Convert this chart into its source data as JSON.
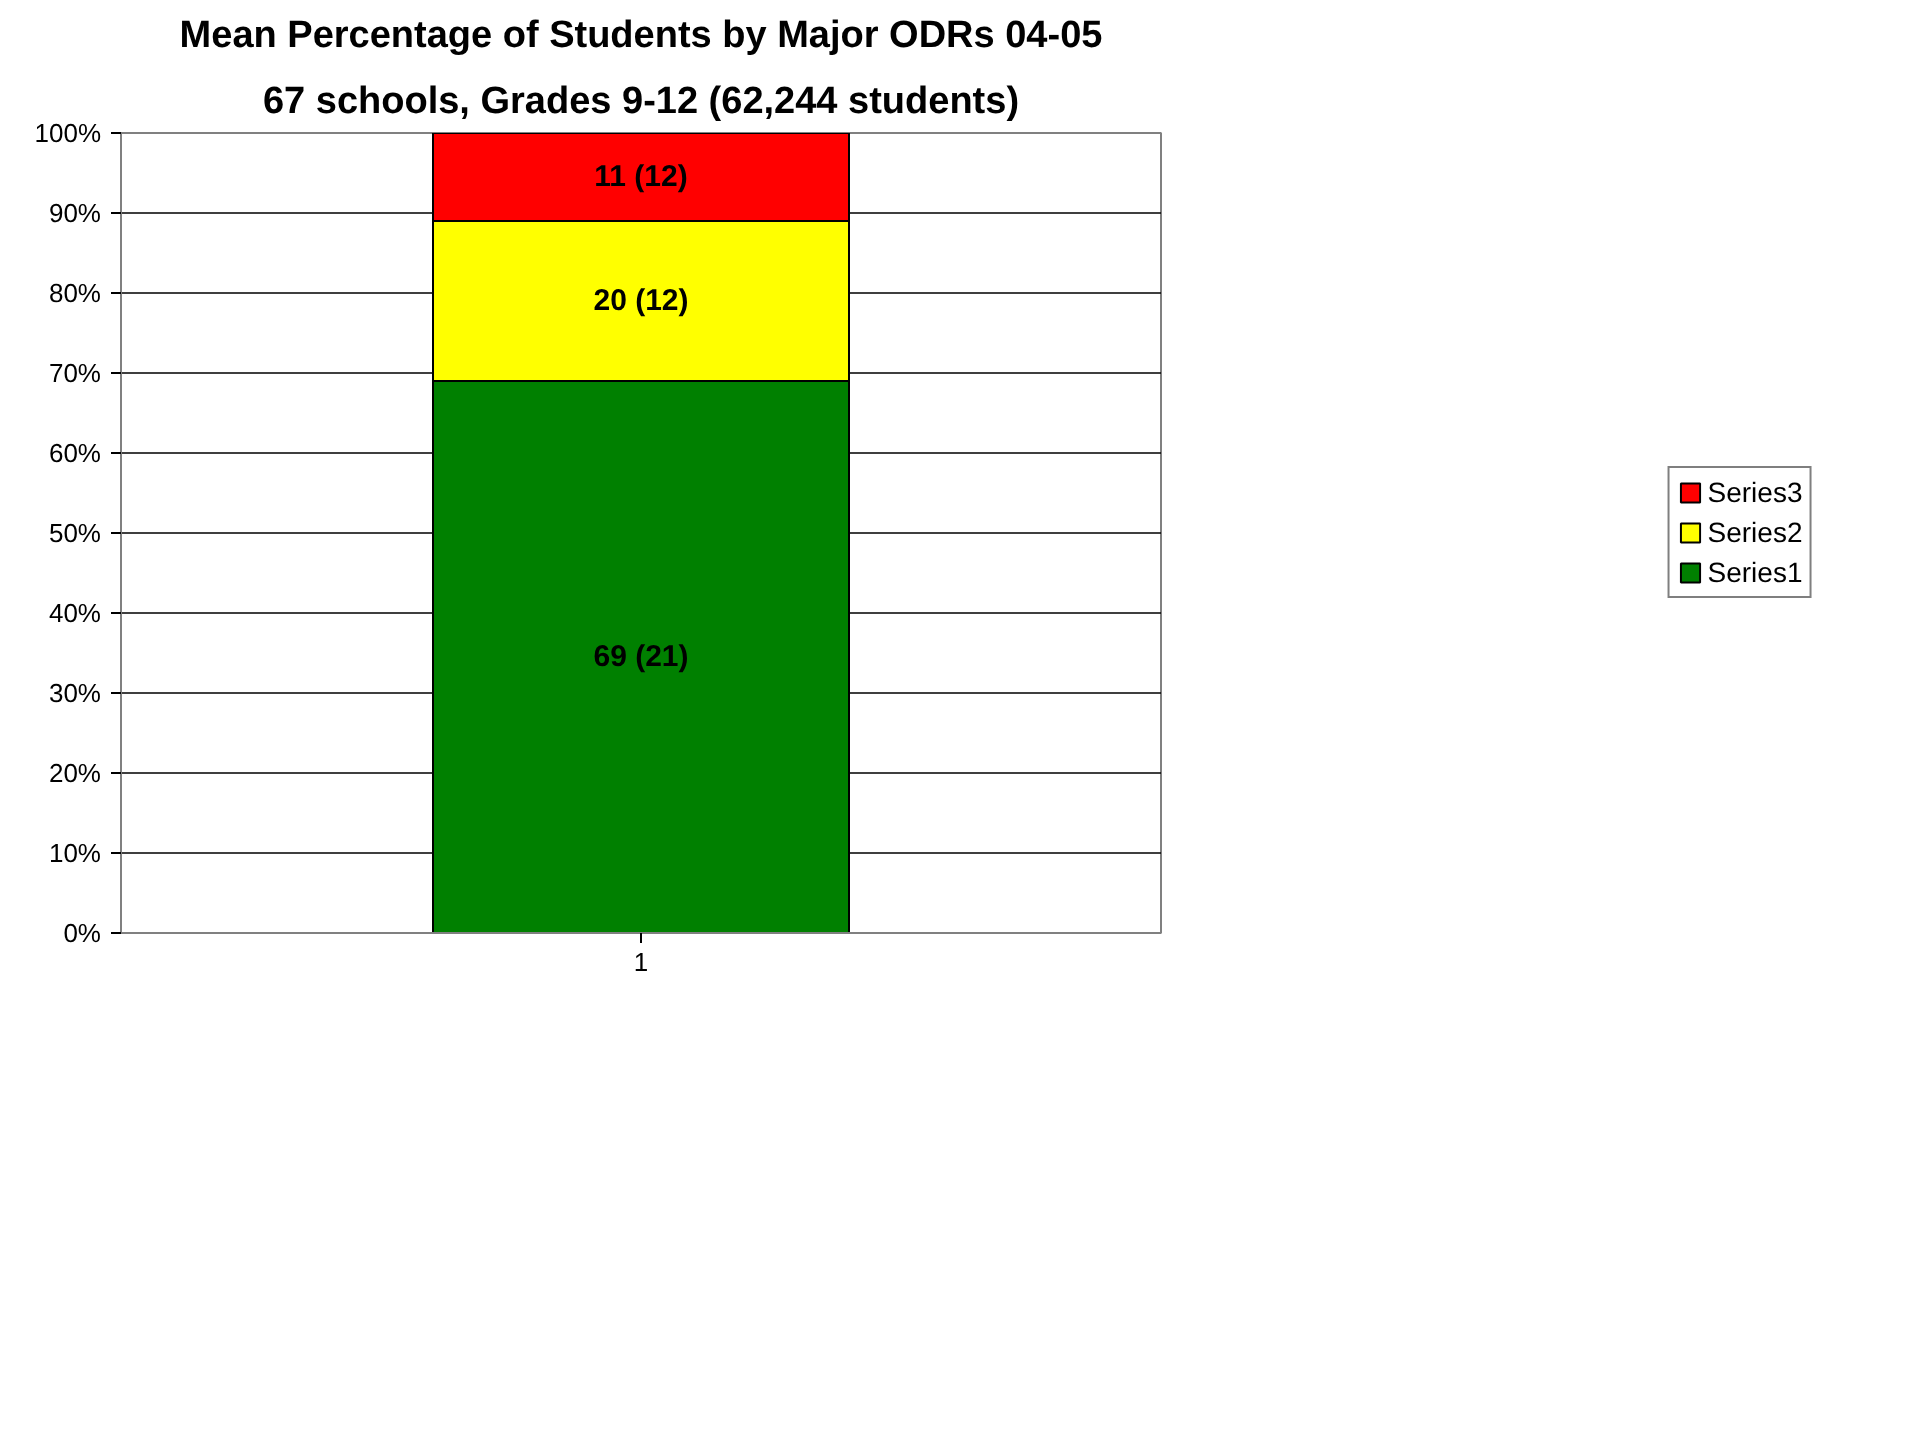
{
  "chart_data": {
    "type": "bar",
    "stacked": true,
    "title": "Mean Percentage of Students by Major ODRs 04-05",
    "subtitle": "67 schools, Grades 9-12 (62,244 students)",
    "categories": [
      "1"
    ],
    "series": [
      {
        "name": "Series1",
        "color": "#008000",
        "values": [
          69
        ],
        "value_labels": [
          "69 (21)"
        ]
      },
      {
        "name": "Series2",
        "color": "#ffff00",
        "values": [
          20
        ],
        "value_labels": [
          "20 (12)"
        ]
      },
      {
        "name": "Series3",
        "color": "#ff0000",
        "values": [
          11
        ],
        "value_labels": [
          "11 (12)"
        ]
      }
    ],
    "ylim": [
      0,
      100
    ],
    "yticks": [
      {
        "value": 0,
        "label": "0%"
      },
      {
        "value": 10,
        "label": "10%"
      },
      {
        "value": 20,
        "label": "20%"
      },
      {
        "value": 30,
        "label": "30%"
      },
      {
        "value": 40,
        "label": "40%"
      },
      {
        "value": 50,
        "label": "50%"
      },
      {
        "value": 60,
        "label": "60%"
      },
      {
        "value": 70,
        "label": "70%"
      },
      {
        "value": 80,
        "label": "80%"
      },
      {
        "value": 90,
        "label": "90%"
      },
      {
        "value": 100,
        "label": "100%"
      }
    ],
    "grid": "y",
    "legend": "right"
  }
}
